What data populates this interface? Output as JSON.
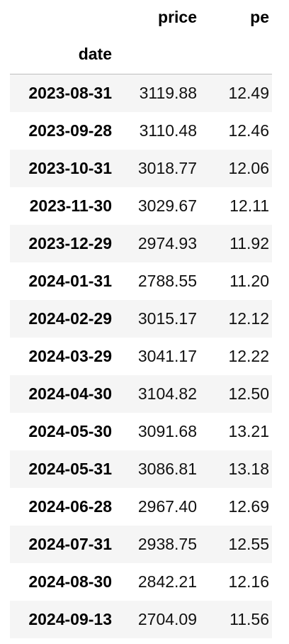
{
  "table": {
    "columns": [
      "price",
      "pe"
    ],
    "index_name": "date",
    "rows": [
      {
        "date": "2023-08-31",
        "price": "3119.88",
        "pe": "12.49"
      },
      {
        "date": "2023-09-28",
        "price": "3110.48",
        "pe": "12.46"
      },
      {
        "date": "2023-10-31",
        "price": "3018.77",
        "pe": "12.06"
      },
      {
        "date": "2023-11-30",
        "price": "3029.67",
        "pe": "12.11"
      },
      {
        "date": "2023-12-29",
        "price": "2974.93",
        "pe": "11.92"
      },
      {
        "date": "2024-01-31",
        "price": "2788.55",
        "pe": "11.20"
      },
      {
        "date": "2024-02-29",
        "price": "3015.17",
        "pe": "12.12"
      },
      {
        "date": "2024-03-29",
        "price": "3041.17",
        "pe": "12.22"
      },
      {
        "date": "2024-04-30",
        "price": "3104.82",
        "pe": "12.50"
      },
      {
        "date": "2024-05-30",
        "price": "3091.68",
        "pe": "13.21"
      },
      {
        "date": "2024-05-31",
        "price": "3086.81",
        "pe": "13.18"
      },
      {
        "date": "2024-06-28",
        "price": "2967.40",
        "pe": "12.69"
      },
      {
        "date": "2024-07-31",
        "price": "2938.75",
        "pe": "12.55"
      },
      {
        "date": "2024-08-30",
        "price": "2842.21",
        "pe": "12.16"
      },
      {
        "date": "2024-09-13",
        "price": "2704.09",
        "pe": "11.56"
      }
    ]
  }
}
